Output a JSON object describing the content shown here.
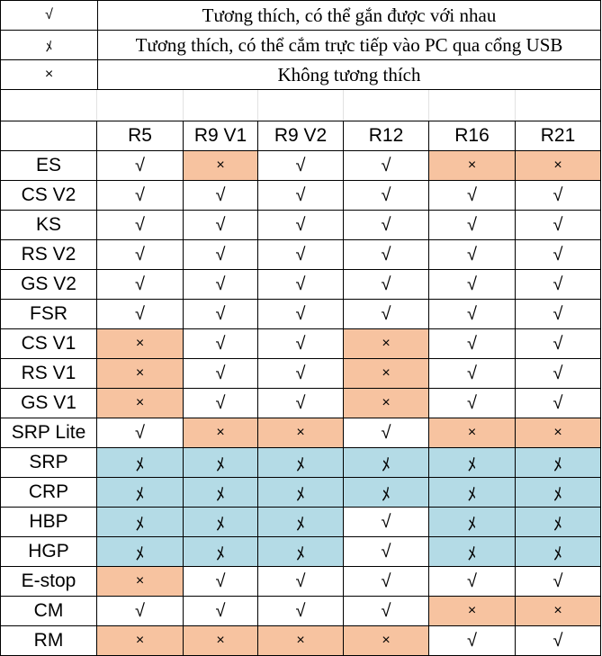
{
  "legend": [
    {
      "symbol": "√",
      "text": "Tương thích, có thể gắn được với nhau"
    },
    {
      "symbol": "ﾒ",
      "text": "Tương thích, có thể cắm trực tiếp vào PC qua cổng USB"
    },
    {
      "symbol": "×",
      "text": "Không tương thích"
    }
  ],
  "columns": [
    "R5",
    "R9 V1",
    "R9 V2",
    "R12",
    "R16",
    "R21"
  ],
  "colors": {
    "incompatible": "#f7c3a0",
    "usb": "#b4dbe6"
  },
  "rows": [
    {
      "name": "ES",
      "values": [
        "√",
        "×",
        "√",
        "√",
        "×",
        "×"
      ]
    },
    {
      "name": "CS V2",
      "values": [
        "√",
        "√",
        "√",
        "√",
        "√",
        "√"
      ]
    },
    {
      "name": "KS",
      "values": [
        "√",
        "√",
        "√",
        "√",
        "√",
        "√"
      ]
    },
    {
      "name": "RS V2",
      "values": [
        "√",
        "√",
        "√",
        "√",
        "√",
        "√"
      ]
    },
    {
      "name": "GS V2",
      "values": [
        "√",
        "√",
        "√",
        "√",
        "√",
        "√"
      ]
    },
    {
      "name": "FSR",
      "values": [
        "√",
        "√",
        "√",
        "√",
        "√",
        "√"
      ]
    },
    {
      "name": "CS V1",
      "values": [
        "×",
        "√",
        "√",
        "×",
        "√",
        "√"
      ]
    },
    {
      "name": "RS V1",
      "values": [
        "×",
        "√",
        "√",
        "×",
        "√",
        "√"
      ]
    },
    {
      "name": "GS V1",
      "values": [
        "×",
        "√",
        "√",
        "×",
        "√",
        "√"
      ]
    },
    {
      "name": "SRP Lite",
      "values": [
        "√",
        "×",
        "×",
        "√",
        "×",
        "×"
      ]
    },
    {
      "name": "SRP",
      "values": [
        "ﾒ",
        "ﾒ",
        "ﾒ",
        "ﾒ",
        "ﾒ",
        "ﾒ"
      ]
    },
    {
      "name": "CRP",
      "values": [
        "ﾒ",
        "ﾒ",
        "ﾒ",
        "ﾒ",
        "ﾒ",
        "ﾒ"
      ]
    },
    {
      "name": "HBP",
      "values": [
        "ﾒ",
        "ﾒ",
        "ﾒ",
        "√",
        "ﾒ",
        "ﾒ"
      ]
    },
    {
      "name": "HGP",
      "values": [
        "ﾒ",
        "ﾒ",
        "ﾒ",
        "√",
        "ﾒ",
        "ﾒ"
      ]
    },
    {
      "name": "E-stop",
      "values": [
        "×",
        "√",
        "√",
        "√",
        "√",
        "√"
      ]
    },
    {
      "name": "CM",
      "values": [
        "√",
        "√",
        "√",
        "√",
        "×",
        "×"
      ]
    },
    {
      "name": "RM",
      "values": [
        "×",
        "×",
        "×",
        "×",
        "√",
        "√"
      ]
    }
  ]
}
